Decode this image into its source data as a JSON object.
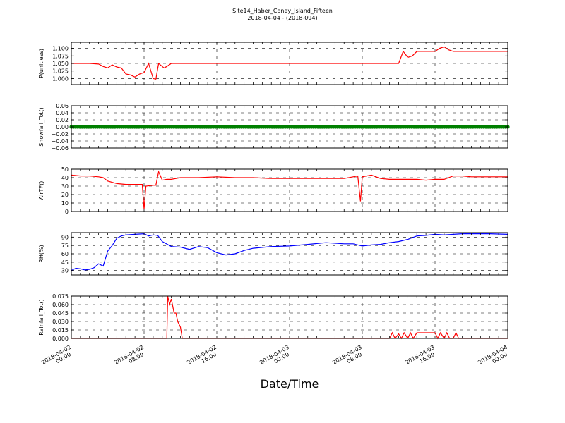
{
  "title": "Site14_Haber_Coney_Island_Fifteen",
  "subtitle": "2018-04-04 - (2018-094)",
  "xlabel": "Date/Time",
  "x_ticks": [
    {
      "t": 0,
      "line1": "2018-04-02",
      "line2": "00:00"
    },
    {
      "t": 8,
      "line1": "2018-04-02",
      "line2": "08:00"
    },
    {
      "t": 16,
      "line1": "2018-04-02",
      "line2": "16:00"
    },
    {
      "t": 24,
      "line1": "2018-04-03",
      "line2": "00:00"
    },
    {
      "t": 32,
      "line1": "2018-04-03",
      "line2": "08:00"
    },
    {
      "t": 40,
      "line1": "2018-04-03",
      "line2": "16:00"
    },
    {
      "t": 48,
      "line1": "2018-04-04",
      "line2": "00:00"
    }
  ],
  "chart_data": [
    {
      "type": "line",
      "ylabel": "P(unitless)",
      "ylim": [
        0.98,
        1.12
      ],
      "yticks": [
        "1.000",
        "1.025",
        "1.050",
        "1.075",
        "1.100"
      ],
      "ytick_values": [
        1.0,
        1.025,
        1.05,
        1.075,
        1.1
      ],
      "color": "#ff0000",
      "grid": true,
      "series": [
        {
          "x": [
            0,
            1,
            2,
            3,
            3.5,
            4,
            4.5,
            5,
            5.5,
            6,
            6.5,
            7,
            7.5,
            8,
            8.5,
            9,
            9.3,
            9.6,
            10,
            10.2,
            10.5,
            11,
            12,
            14,
            16,
            18,
            20,
            22,
            24,
            26,
            28,
            30,
            32,
            34,
            35,
            36,
            36.5,
            37,
            37.5,
            38,
            39,
            40,
            40.5,
            41,
            41.5,
            42,
            43,
            44,
            45,
            46,
            47,
            48
          ],
          "y": [
            1.05,
            1.05,
            1.05,
            1.048,
            1.04,
            1.035,
            1.045,
            1.038,
            1.035,
            1.015,
            1.012,
            1.005,
            1.015,
            1.02,
            1.05,
            1.0,
            0.998,
            1.05,
            1.04,
            1.035,
            1.04,
            1.05,
            1.05,
            1.05,
            1.05,
            1.05,
            1.05,
            1.05,
            1.05,
            1.05,
            1.05,
            1.05,
            1.05,
            1.05,
            1.05,
            1.05,
            1.09,
            1.07,
            1.075,
            1.09,
            1.09,
            1.09,
            1.1,
            1.105,
            1.095,
            1.09,
            1.09,
            1.09,
            1.09,
            1.09,
            1.09,
            1.09
          ]
        }
      ]
    },
    {
      "type": "scatter",
      "ylabel": "Snowfall_Tot()",
      "ylim": [
        -0.06,
        0.06
      ],
      "yticks": [
        "0.06",
        "0.04",
        "0.02",
        "0.00",
        "−0.02",
        "−0.04",
        "−0.06"
      ],
      "ytick_values": [
        0.06,
        0.04,
        0.02,
        0.0,
        -0.02,
        -0.04,
        -0.06
      ],
      "color": "#008000",
      "grid": true,
      "series": [
        {
          "constant": 0.0,
          "x_start": 0,
          "x_end": 48
        }
      ]
    },
    {
      "type": "line",
      "ylabel": "AirTF()",
      "ylim": [
        0,
        50
      ],
      "yticks": [
        "0",
        "10",
        "20",
        "30",
        "40",
        "50"
      ],
      "ytick_values": [
        0,
        10,
        20,
        30,
        40,
        50
      ],
      "color": "#ff0000",
      "grid": true,
      "series": [
        {
          "x": [
            0,
            1,
            2,
            3,
            3.5,
            4,
            5,
            6,
            7,
            7.8,
            8.0,
            8.2,
            9,
            9.3,
            9.6,
            10,
            10.5,
            11,
            12,
            14,
            16,
            18,
            20,
            22,
            24,
            26,
            28,
            30,
            31,
            31.5,
            31.8,
            32,
            33,
            34,
            35,
            36,
            37,
            38,
            39,
            40,
            41,
            42,
            43,
            44,
            45,
            46,
            47,
            48
          ],
          "y": [
            43,
            42,
            42,
            41,
            40,
            36,
            33,
            32,
            32,
            32,
            3,
            30,
            31,
            31,
            47,
            37,
            38,
            38,
            40,
            40,
            41,
            40,
            40,
            39,
            39,
            39,
            39,
            39,
            41,
            42,
            12,
            41,
            43,
            39,
            38,
            38,
            38,
            38,
            37,
            38,
            38,
            42,
            42,
            41,
            41,
            41,
            41,
            41
          ]
        }
      ]
    },
    {
      "type": "line",
      "ylabel": "RH(%)",
      "ylim": [
        22,
        98
      ],
      "yticks": [
        "30",
        "45",
        "60",
        "75",
        "90"
      ],
      "ytick_values": [
        30,
        45,
        60,
        75,
        90
      ],
      "color": "#0000ff",
      "grid": true,
      "series": [
        {
          "x": [
            0,
            0.5,
            1,
            1.5,
            2,
            2.5,
            3,
            3.5,
            4,
            4.5,
            5,
            5.5,
            6,
            7,
            8,
            8.5,
            9,
            9.5,
            10,
            11,
            12,
            13,
            14,
            15,
            16,
            17,
            18,
            19,
            20,
            22,
            24,
            26,
            28,
            30,
            31,
            32,
            33,
            34,
            35,
            36,
            37,
            38,
            39,
            40,
            41,
            42,
            43,
            44,
            46,
            48
          ],
          "y": [
            30,
            34,
            33,
            31,
            32,
            35,
            42,
            38,
            65,
            75,
            88,
            92,
            94,
            95,
            96,
            92,
            94,
            93,
            82,
            73,
            72,
            68,
            73,
            71,
            62,
            58,
            60,
            66,
            70,
            73,
            74,
            77,
            80,
            78,
            78,
            74,
            76,
            77,
            80,
            82,
            86,
            92,
            93,
            95,
            94,
            95,
            96,
            96,
            96,
            95
          ]
        }
      ]
    },
    {
      "type": "line",
      "ylabel": "Rainfall_Tot()",
      "ylim": [
        0,
        0.075
      ],
      "yticks": [
        "0.000",
        "0.015",
        "0.030",
        "0.045",
        "0.060",
        "0.075"
      ],
      "ytick_values": [
        0,
        0.015,
        0.03,
        0.045,
        0.06,
        0.075
      ],
      "color": "#ff0000",
      "grid": true,
      "series": [
        {
          "x": [
            0,
            10.5,
            10.6,
            10.8,
            11.0,
            11.3,
            11.5,
            11.7,
            12.0,
            12.2,
            12.4,
            35,
            35.3,
            35.6,
            36,
            36.3,
            36.6,
            37,
            37.3,
            37.6,
            38,
            39,
            40,
            40.3,
            40.6,
            41,
            41.3,
            41.6,
            42,
            42.3,
            42.6,
            43,
            48
          ],
          "y": [
            0,
            0,
            0.075,
            0.06,
            0.07,
            0.045,
            0.045,
            0.03,
            0.02,
            0.0,
            0.0,
            0,
            0.01,
            0,
            0.008,
            0,
            0.01,
            0,
            0.01,
            0,
            0.01,
            0.01,
            0.01,
            0,
            0.01,
            0,
            0.01,
            0,
            0,
            0.01,
            0,
            0,
            0
          ]
        }
      ]
    }
  ]
}
